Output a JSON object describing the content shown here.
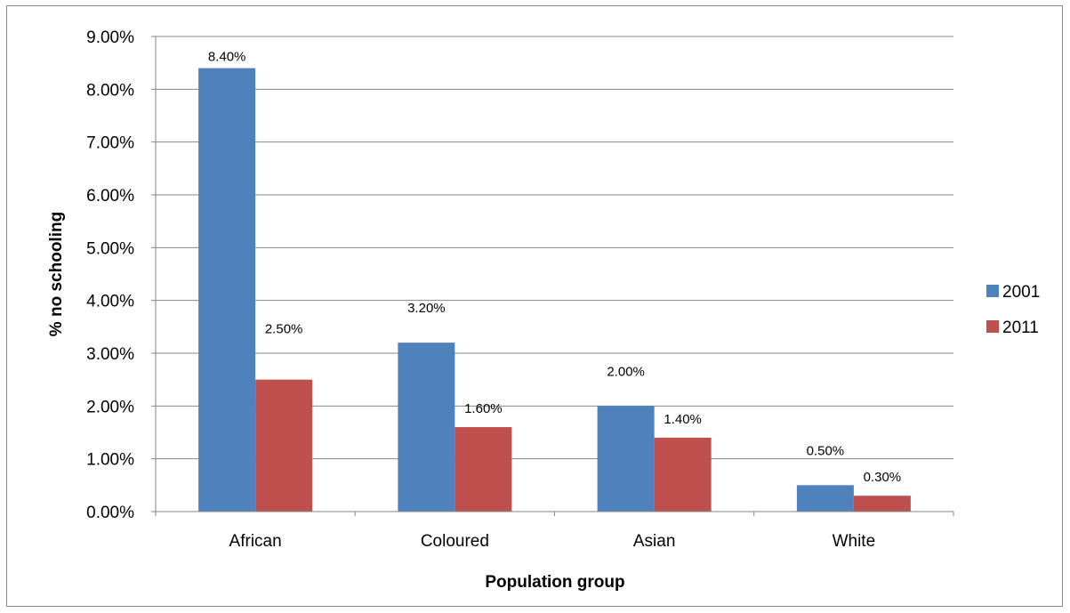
{
  "colors": {
    "series_2001": "#4f81bd",
    "series_2011": "#c0504d",
    "gridline": "#868686",
    "axis": "#868686"
  },
  "chart_data": {
    "type": "bar",
    "title": "",
    "xlabel": "Population group",
    "ylabel": "% no schooling",
    "categories": [
      "African",
      "Coloured",
      "Asian",
      "White"
    ],
    "series": [
      {
        "name": "2001",
        "values": [
          8.4,
          3.2,
          2.0,
          0.5
        ],
        "labels": [
          "8.40%",
          "3.20%",
          "2.00%",
          "0.50%"
        ]
      },
      {
        "name": "2011",
        "values": [
          2.5,
          1.6,
          1.4,
          0.3
        ],
        "labels": [
          "2.50%",
          "1.60%",
          "1.40%",
          "0.30%"
        ]
      }
    ],
    "ylim": [
      0,
      9
    ],
    "yticks": [
      0,
      1,
      2,
      3,
      4,
      5,
      6,
      7,
      8,
      9
    ],
    "ytick_labels": [
      "0.00%",
      "1.00%",
      "2.00%",
      "3.00%",
      "4.00%",
      "5.00%",
      "6.00%",
      "7.00%",
      "8.00%",
      "9.00%"
    ],
    "grid": true,
    "legend_position": "right"
  }
}
